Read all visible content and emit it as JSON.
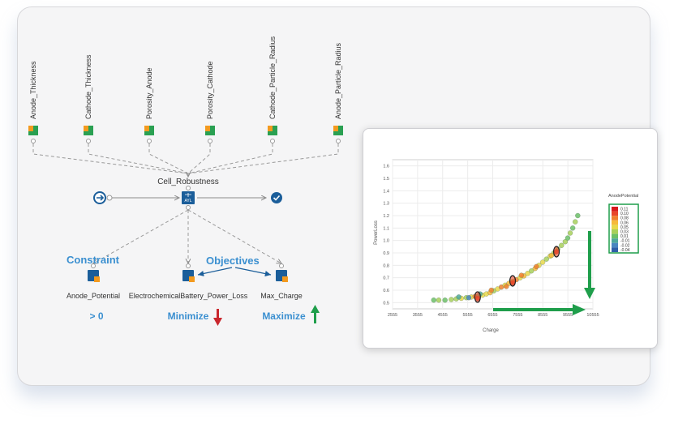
{
  "inputs": [
    {
      "label": "Anode_Thickness"
    },
    {
      "label": "Cathode_Thickness"
    },
    {
      "label": "Porosity_Anode"
    },
    {
      "label": "Porosity_Cathode"
    },
    {
      "label": "Cathode_Particle_Radius"
    },
    {
      "label": "Anode_Particle_Radius"
    }
  ],
  "central_node": {
    "label": "Cell_Robustness",
    "icon_text": "AYL"
  },
  "outputs": [
    {
      "label": "Anode_Potential",
      "goal": "> 0"
    },
    {
      "label": "ElectrochemicalBattery_Power_Loss",
      "goal": "Minimize"
    },
    {
      "label": "Max_Charge",
      "goal": "Maximize"
    }
  ],
  "annotations": {
    "constraint": "Constraint",
    "objectives": "Objectives"
  },
  "colors": {
    "accent_blue": "#3a8fd0",
    "node_blue": "#1b5e9a",
    "minimize_red": "#c9262c",
    "maximize_green": "#1f9e4b",
    "input_green": "#2aa052",
    "input_orange": "#f39a1f"
  },
  "chart_data": {
    "type": "scatter",
    "xlabel": "Charge",
    "ylabel": "PowerLoss",
    "x_ticks": [
      "2555",
      "3555",
      "4555",
      "5555",
      "6555",
      "7555",
      "8555",
      "9555",
      "10555"
    ],
    "y_ticks": [
      "0.5",
      "0.6",
      "0.7",
      "0.8",
      "0.9",
      "1.0",
      "1.1",
      "1.2",
      "1.3",
      "1.4",
      "1.5",
      "1.6"
    ],
    "xlim": [
      2555,
      10555
    ],
    "ylim": [
      0.45,
      1.65
    ],
    "grid": true,
    "legend": {
      "title": "AnodePotential",
      "placement": "right",
      "entries": [
        "0.11",
        "0.10",
        "0.08",
        "0.06",
        "0.05",
        "0.03",
        "0.01",
        "-0.01",
        "-0.02",
        "-0.04"
      ],
      "colors": [
        "#d7191c",
        "#e8452a",
        "#f07f2e",
        "#f6b93a",
        "#e8d84a",
        "#a8d05a",
        "#6cc068",
        "#4fa89a",
        "#4a86c0",
        "#2f5fa8"
      ]
    },
    "points": [
      {
        "x": 4200,
        "y": 0.52,
        "c": 0.01
      },
      {
        "x": 4400,
        "y": 0.52,
        "c": 0.02
      },
      {
        "x": 4650,
        "y": 0.52,
        "c": 0.01
      },
      {
        "x": 4900,
        "y": 0.525,
        "c": 0.03
      },
      {
        "x": 5100,
        "y": 0.53,
        "c": 0.02
      },
      {
        "x": 5300,
        "y": 0.535,
        "c": 0.04
      },
      {
        "x": 5500,
        "y": 0.54,
        "c": 0.03
      },
      {
        "x": 5700,
        "y": 0.545,
        "c": 0.05
      },
      {
        "x": 5850,
        "y": 0.55,
        "c": 0.07
      },
      {
        "x": 6000,
        "y": 0.555,
        "c": 0.03
      },
      {
        "x": 6150,
        "y": 0.56,
        "c": 0.05
      },
      {
        "x": 6300,
        "y": 0.57,
        "c": 0.04
      },
      {
        "x": 6450,
        "y": 0.58,
        "c": 0.06
      },
      {
        "x": 6600,
        "y": 0.595,
        "c": 0.03
      },
      {
        "x": 6750,
        "y": 0.61,
        "c": 0.05
      },
      {
        "x": 6900,
        "y": 0.625,
        "c": 0.07
      },
      {
        "x": 7050,
        "y": 0.64,
        "c": 0.04
      },
      {
        "x": 7200,
        "y": 0.655,
        "c": 0.06
      },
      {
        "x": 7350,
        "y": 0.67,
        "c": 0.05
      },
      {
        "x": 7500,
        "y": 0.685,
        "c": 0.08
      },
      {
        "x": 7650,
        "y": 0.7,
        "c": 0.04
      },
      {
        "x": 7800,
        "y": 0.715,
        "c": 0.06
      },
      {
        "x": 7950,
        "y": 0.735,
        "c": 0.05
      },
      {
        "x": 8100,
        "y": 0.755,
        "c": 0.03
      },
      {
        "x": 8250,
        "y": 0.775,
        "c": 0.06
      },
      {
        "x": 8400,
        "y": 0.8,
        "c": 0.04
      },
      {
        "x": 8550,
        "y": 0.825,
        "c": 0.05
      },
      {
        "x": 8700,
        "y": 0.85,
        "c": 0.03
      },
      {
        "x": 8850,
        "y": 0.875,
        "c": 0.04
      },
      {
        "x": 9000,
        "y": 0.9,
        "c": 0.02
      },
      {
        "x": 9150,
        "y": 0.93,
        "c": 0.03
      },
      {
        "x": 9300,
        "y": 0.96,
        "c": 0.02
      },
      {
        "x": 9450,
        "y": 0.99,
        "c": 0.03
      },
      {
        "x": 9550,
        "y": 1.02,
        "c": 0.01
      },
      {
        "x": 9650,
        "y": 1.06,
        "c": 0.02
      },
      {
        "x": 9750,
        "y": 1.1,
        "c": 0.01
      },
      {
        "x": 9850,
        "y": 1.15,
        "c": 0.02
      },
      {
        "x": 9950,
        "y": 1.2,
        "c": 0.01
      },
      {
        "x": 5200,
        "y": 0.545,
        "c": -0.01
      },
      {
        "x": 5600,
        "y": 0.54,
        "c": -0.02
      },
      {
        "x": 6050,
        "y": 0.57,
        "c": -0.01
      },
      {
        "x": 6500,
        "y": 0.6,
        "c": 0.09
      },
      {
        "x": 7100,
        "y": 0.63,
        "c": 0.08
      },
      {
        "x": 7700,
        "y": 0.72,
        "c": 0.07
      },
      {
        "x": 8300,
        "y": 0.79,
        "c": 0.08
      },
      {
        "x": 8900,
        "y": 0.88,
        "c": 0.06
      },
      {
        "x": 5950,
        "y": 0.535,
        "c": 0.1
      },
      {
        "x": 7350,
        "y": 0.66,
        "c": 0.1
      },
      {
        "x": 9100,
        "y": 0.91,
        "c": 0.1
      }
    ],
    "highlighted": [
      {
        "x": 5950,
        "y": 0.545
      },
      {
        "x": 7350,
        "y": 0.675
      },
      {
        "x": 9100,
        "y": 0.91
      }
    ]
  }
}
